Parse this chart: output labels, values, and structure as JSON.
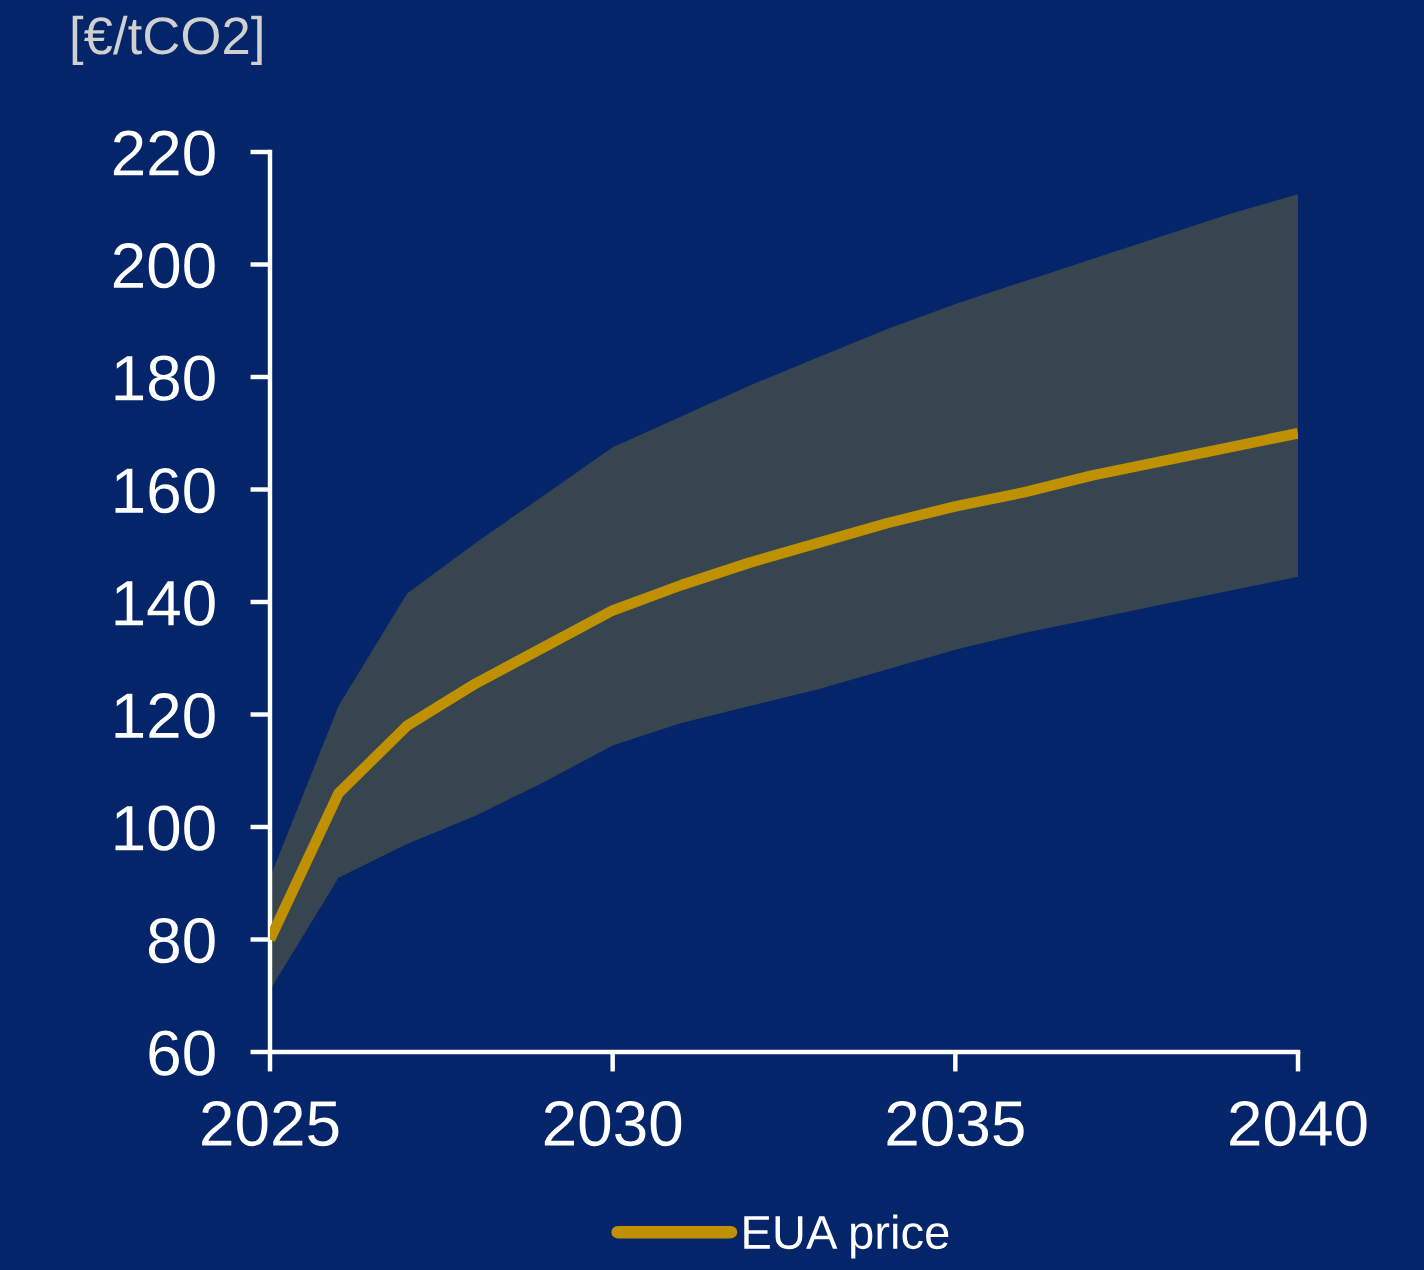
{
  "chart_data": {
    "type": "line",
    "ylabel": "[€/tCO2]",
    "x": [
      2025,
      2026,
      2027,
      2028,
      2029,
      2030,
      2031,
      2032,
      2033,
      2034,
      2035,
      2036,
      2037,
      2038,
      2039,
      2040
    ],
    "series": [
      {
        "name": "EUA price",
        "color": "#bf9000",
        "values": [
          80,
          106,
          118,
          125.5,
          132,
          138.5,
          143,
          147,
          150.5,
          154,
          157,
          159.5,
          162.5,
          165,
          167.5,
          170
        ],
        "lower": [
          71,
          91,
          97,
          102,
          108,
          114.5,
          118.5,
          121.5,
          124.5,
          128,
          131.5,
          134.5,
          137,
          139.5,
          142,
          144.5
        ],
        "upper": [
          91,
          121.5,
          141.5,
          150.5,
          159,
          167.5,
          173,
          178.5,
          183.5,
          188.5,
          193,
          197,
          201,
          205,
          209,
          212.5
        ]
      }
    ],
    "xlim": [
      2025,
      2040
    ],
    "ylim": [
      60,
      220
    ],
    "xticks": [
      2025,
      2030,
      2035,
      2040
    ],
    "yticks": [
      60,
      80,
      100,
      120,
      140,
      160,
      180,
      200,
      220
    ],
    "grid": false,
    "legend": "bottom",
    "line_style": "solid"
  }
}
